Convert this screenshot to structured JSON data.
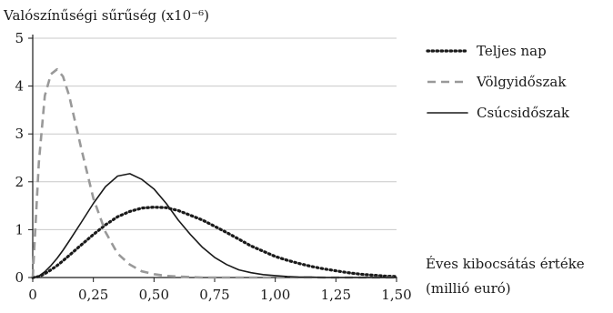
{
  "chart_data": {
    "type": "line",
    "title": "",
    "ylabel": "Valószínűségi sűrűség (x10⁻⁶)",
    "xlabel_line1": "Éves kibocsátás értéke",
    "xlabel_line2": "(millió euró)",
    "xlim": [
      0,
      1.5
    ],
    "ylim": [
      0,
      5
    ],
    "x_ticks": [
      "0",
      "0,25",
      "0,50",
      "0,75",
      "1,00",
      "1,25",
      "1,50"
    ],
    "y_ticks": [
      "0",
      "1",
      "2",
      "3",
      "4",
      "5"
    ],
    "grid": true,
    "legend_position": "top-right",
    "x": [
      0,
      0.025,
      0.05,
      0.075,
      0.1,
      0.125,
      0.15,
      0.2,
      0.25,
      0.3,
      0.35,
      0.4,
      0.45,
      0.5,
      0.55,
      0.6,
      0.65,
      0.7,
      0.75,
      0.8,
      0.85,
      0.9,
      0.95,
      1.0,
      1.05,
      1.1,
      1.15,
      1.2,
      1.25,
      1.3,
      1.35,
      1.4,
      1.45,
      1.5
    ],
    "series": [
      {
        "name": "Teljes nap",
        "style": "dotted",
        "color": "#1a1a1a",
        "values": [
          0,
          0.02,
          0.08,
          0.16,
          0.25,
          0.35,
          0.46,
          0.68,
          0.9,
          1.1,
          1.27,
          1.38,
          1.45,
          1.47,
          1.46,
          1.4,
          1.3,
          1.2,
          1.07,
          0.94,
          0.8,
          0.66,
          0.55,
          0.44,
          0.36,
          0.29,
          0.23,
          0.18,
          0.14,
          0.1,
          0.07,
          0.05,
          0.03,
          0.02
        ]
      },
      {
        "name": "Völgyidőszak",
        "style": "dashed",
        "color": "#999999",
        "values": [
          0,
          2.4,
          3.8,
          4.25,
          4.35,
          4.2,
          3.8,
          2.7,
          1.65,
          0.95,
          0.5,
          0.27,
          0.13,
          0.07,
          0.035,
          0.02,
          0.01,
          0,
          0,
          0,
          0,
          0,
          0,
          0,
          0,
          0,
          0,
          0,
          0,
          0,
          0,
          0,
          0,
          0
        ]
      },
      {
        "name": "Csúcsidőszak",
        "style": "solid",
        "color": "#1a1a1a",
        "values": [
          0,
          0.03,
          0.12,
          0.25,
          0.4,
          0.57,
          0.76,
          1.15,
          1.55,
          1.9,
          2.12,
          2.17,
          2.05,
          1.85,
          1.55,
          1.2,
          0.9,
          0.63,
          0.42,
          0.27,
          0.16,
          0.1,
          0.06,
          0.04,
          0.02,
          0.01,
          0.01,
          0,
          0,
          0,
          0,
          0,
          0,
          0
        ]
      }
    ]
  }
}
